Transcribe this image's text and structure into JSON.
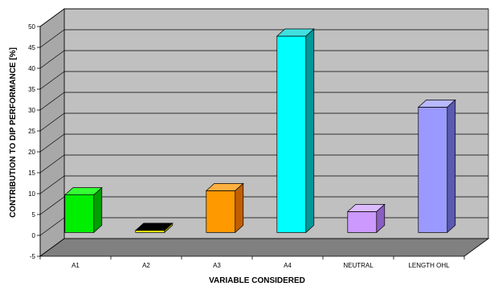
{
  "chart_data": {
    "type": "bar",
    "categories": [
      "A1",
      "A2",
      "A3",
      "A4",
      "NEUTRAL",
      "LENGTH OHL"
    ],
    "values": [
      9,
      0.5,
      10,
      47,
      5,
      30
    ],
    "xlabel": "VARIABLE CONSIDERED",
    "ylabel": "CONTRIBUTION TO DIP PERFORMANCE [%]",
    "ylim": [
      -5,
      50
    ],
    "yticks": [
      -5,
      0,
      5,
      10,
      15,
      20,
      25,
      30,
      35,
      40,
      45,
      50
    ],
    "grid": true,
    "style": "3d",
    "wall_color": "#c0c0c0",
    "floor_color": "#808080",
    "colors": [
      {
        "front": "#00ee00",
        "top": "#33ff33",
        "side": "#00a000"
      },
      {
        "front": "#ffff00",
        "top": "#000000",
        "side": "#999900"
      },
      {
        "front": "#ff9900",
        "top": "#ffb040",
        "side": "#c06000"
      },
      {
        "front": "#00ffff",
        "top": "#40e0e0",
        "side": "#009898"
      },
      {
        "front": "#cc99ff",
        "top": "#dcbcff",
        "side": "#8a5ec0"
      },
      {
        "front": "#9999ff",
        "top": "#b8b8ff",
        "side": "#5a5ab0"
      }
    ]
  }
}
